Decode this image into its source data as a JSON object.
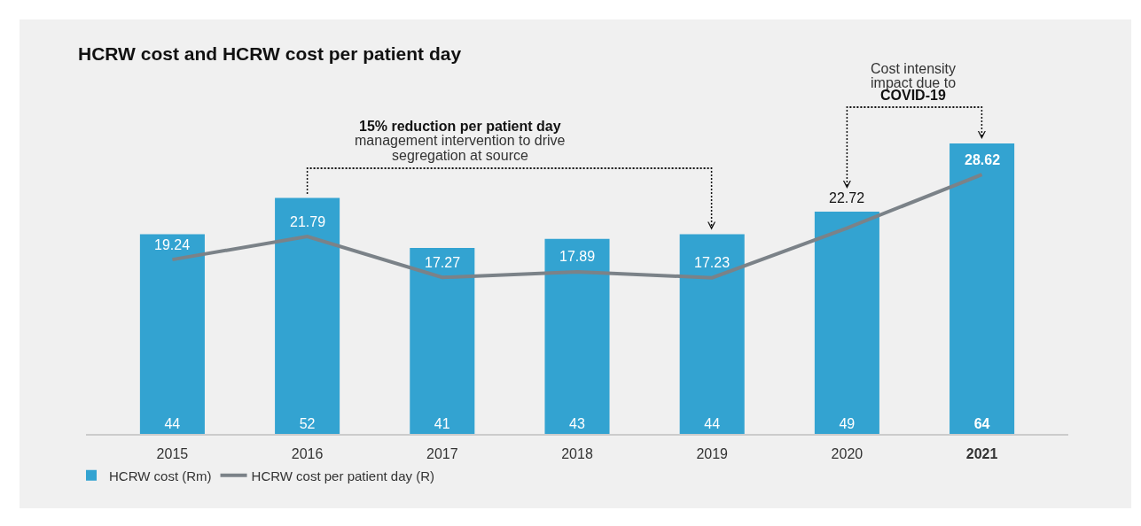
{
  "chart_data": {
    "type": "bar",
    "title": "HCRW cost and HCRW cost per patient day",
    "categories": [
      "2015",
      "2016",
      "2017",
      "2018",
      "2019",
      "2020",
      "2021"
    ],
    "series": [
      {
        "name": "HCRW cost (Rm)",
        "color": "#33a3d1",
        "values": [
          44,
          52,
          41,
          43,
          44,
          49,
          64
        ]
      },
      {
        "name": "HCRW cost per patient day (R)",
        "type": "line",
        "axis": "y2",
        "color": "#7b8288",
        "values": [
          19.24,
          21.79,
          17.27,
          17.89,
          17.23,
          22.72,
          28.62
        ]
      }
    ],
    "tick_labels": "x",
    "data_labels": true,
    "legend": "bottom left",
    "annotations": [
      "15% reduction per patient day",
      "management intervention to drive segregation at source",
      "Cost intensity impact due to",
      "COVID-19"
    ]
  }
}
